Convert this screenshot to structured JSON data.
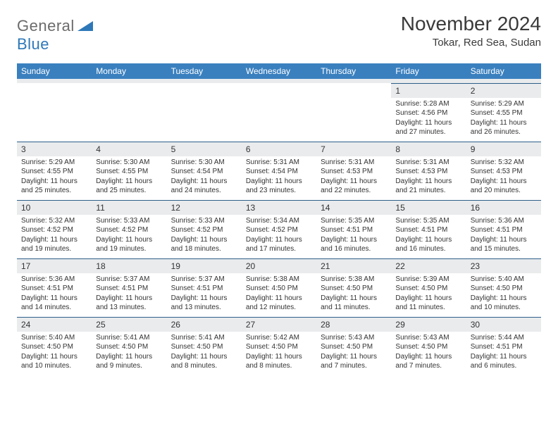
{
  "logo": {
    "part1": "General",
    "part2": "Blue"
  },
  "title": "November 2024",
  "location": "Tokar, Red Sea, Sudan",
  "colors": {
    "header_bg": "#3a80bf",
    "header_text": "#ffffff",
    "daynum_bg": "#e9ebed",
    "border": "#2e5f8a",
    "logo_gray": "#6b6b6b",
    "logo_blue": "#2e78b8"
  },
  "dow": [
    "Sunday",
    "Monday",
    "Tuesday",
    "Wednesday",
    "Thursday",
    "Friday",
    "Saturday"
  ],
  "weeks": [
    {
      "nums": [
        "",
        "",
        "",
        "",
        "",
        "1",
        "2"
      ],
      "cells": [
        null,
        null,
        null,
        null,
        null,
        {
          "sr": "Sunrise: 5:28 AM",
          "ss": "Sunset: 4:56 PM",
          "d1": "Daylight: 11 hours",
          "d2": "and 27 minutes."
        },
        {
          "sr": "Sunrise: 5:29 AM",
          "ss": "Sunset: 4:55 PM",
          "d1": "Daylight: 11 hours",
          "d2": "and 26 minutes."
        }
      ]
    },
    {
      "nums": [
        "3",
        "4",
        "5",
        "6",
        "7",
        "8",
        "9"
      ],
      "cells": [
        {
          "sr": "Sunrise: 5:29 AM",
          "ss": "Sunset: 4:55 PM",
          "d1": "Daylight: 11 hours",
          "d2": "and 25 minutes."
        },
        {
          "sr": "Sunrise: 5:30 AM",
          "ss": "Sunset: 4:55 PM",
          "d1": "Daylight: 11 hours",
          "d2": "and 25 minutes."
        },
        {
          "sr": "Sunrise: 5:30 AM",
          "ss": "Sunset: 4:54 PM",
          "d1": "Daylight: 11 hours",
          "d2": "and 24 minutes."
        },
        {
          "sr": "Sunrise: 5:31 AM",
          "ss": "Sunset: 4:54 PM",
          "d1": "Daylight: 11 hours",
          "d2": "and 23 minutes."
        },
        {
          "sr": "Sunrise: 5:31 AM",
          "ss": "Sunset: 4:53 PM",
          "d1": "Daylight: 11 hours",
          "d2": "and 22 minutes."
        },
        {
          "sr": "Sunrise: 5:31 AM",
          "ss": "Sunset: 4:53 PM",
          "d1": "Daylight: 11 hours",
          "d2": "and 21 minutes."
        },
        {
          "sr": "Sunrise: 5:32 AM",
          "ss": "Sunset: 4:53 PM",
          "d1": "Daylight: 11 hours",
          "d2": "and 20 minutes."
        }
      ]
    },
    {
      "nums": [
        "10",
        "11",
        "12",
        "13",
        "14",
        "15",
        "16"
      ],
      "cells": [
        {
          "sr": "Sunrise: 5:32 AM",
          "ss": "Sunset: 4:52 PM",
          "d1": "Daylight: 11 hours",
          "d2": "and 19 minutes."
        },
        {
          "sr": "Sunrise: 5:33 AM",
          "ss": "Sunset: 4:52 PM",
          "d1": "Daylight: 11 hours",
          "d2": "and 19 minutes."
        },
        {
          "sr": "Sunrise: 5:33 AM",
          "ss": "Sunset: 4:52 PM",
          "d1": "Daylight: 11 hours",
          "d2": "and 18 minutes."
        },
        {
          "sr": "Sunrise: 5:34 AM",
          "ss": "Sunset: 4:52 PM",
          "d1": "Daylight: 11 hours",
          "d2": "and 17 minutes."
        },
        {
          "sr": "Sunrise: 5:35 AM",
          "ss": "Sunset: 4:51 PM",
          "d1": "Daylight: 11 hours",
          "d2": "and 16 minutes."
        },
        {
          "sr": "Sunrise: 5:35 AM",
          "ss": "Sunset: 4:51 PM",
          "d1": "Daylight: 11 hours",
          "d2": "and 16 minutes."
        },
        {
          "sr": "Sunrise: 5:36 AM",
          "ss": "Sunset: 4:51 PM",
          "d1": "Daylight: 11 hours",
          "d2": "and 15 minutes."
        }
      ]
    },
    {
      "nums": [
        "17",
        "18",
        "19",
        "20",
        "21",
        "22",
        "23"
      ],
      "cells": [
        {
          "sr": "Sunrise: 5:36 AM",
          "ss": "Sunset: 4:51 PM",
          "d1": "Daylight: 11 hours",
          "d2": "and 14 minutes."
        },
        {
          "sr": "Sunrise: 5:37 AM",
          "ss": "Sunset: 4:51 PM",
          "d1": "Daylight: 11 hours",
          "d2": "and 13 minutes."
        },
        {
          "sr": "Sunrise: 5:37 AM",
          "ss": "Sunset: 4:51 PM",
          "d1": "Daylight: 11 hours",
          "d2": "and 13 minutes."
        },
        {
          "sr": "Sunrise: 5:38 AM",
          "ss": "Sunset: 4:50 PM",
          "d1": "Daylight: 11 hours",
          "d2": "and 12 minutes."
        },
        {
          "sr": "Sunrise: 5:38 AM",
          "ss": "Sunset: 4:50 PM",
          "d1": "Daylight: 11 hours",
          "d2": "and 11 minutes."
        },
        {
          "sr": "Sunrise: 5:39 AM",
          "ss": "Sunset: 4:50 PM",
          "d1": "Daylight: 11 hours",
          "d2": "and 11 minutes."
        },
        {
          "sr": "Sunrise: 5:40 AM",
          "ss": "Sunset: 4:50 PM",
          "d1": "Daylight: 11 hours",
          "d2": "and 10 minutes."
        }
      ]
    },
    {
      "nums": [
        "24",
        "25",
        "26",
        "27",
        "28",
        "29",
        "30"
      ],
      "cells": [
        {
          "sr": "Sunrise: 5:40 AM",
          "ss": "Sunset: 4:50 PM",
          "d1": "Daylight: 11 hours",
          "d2": "and 10 minutes."
        },
        {
          "sr": "Sunrise: 5:41 AM",
          "ss": "Sunset: 4:50 PM",
          "d1": "Daylight: 11 hours",
          "d2": "and 9 minutes."
        },
        {
          "sr": "Sunrise: 5:41 AM",
          "ss": "Sunset: 4:50 PM",
          "d1": "Daylight: 11 hours",
          "d2": "and 8 minutes."
        },
        {
          "sr": "Sunrise: 5:42 AM",
          "ss": "Sunset: 4:50 PM",
          "d1": "Daylight: 11 hours",
          "d2": "and 8 minutes."
        },
        {
          "sr": "Sunrise: 5:43 AM",
          "ss": "Sunset: 4:50 PM",
          "d1": "Daylight: 11 hours",
          "d2": "and 7 minutes."
        },
        {
          "sr": "Sunrise: 5:43 AM",
          "ss": "Sunset: 4:50 PM",
          "d1": "Daylight: 11 hours",
          "d2": "and 7 minutes."
        },
        {
          "sr": "Sunrise: 5:44 AM",
          "ss": "Sunset: 4:51 PM",
          "d1": "Daylight: 11 hours",
          "d2": "and 6 minutes."
        }
      ]
    }
  ]
}
